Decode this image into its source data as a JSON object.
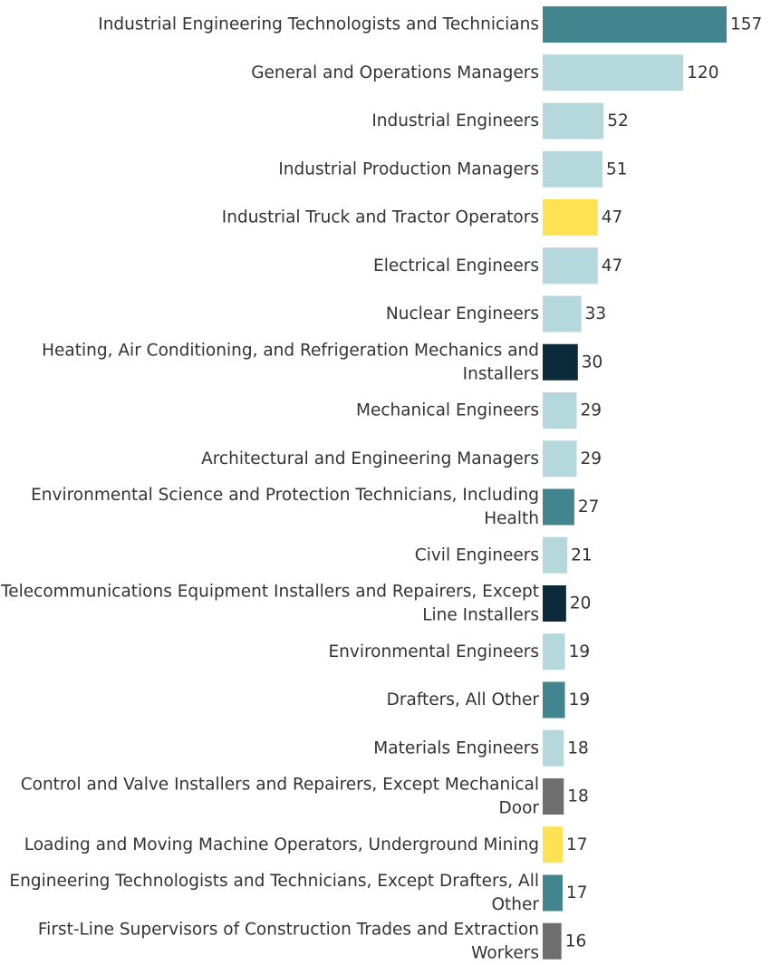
{
  "chart_data": {
    "type": "bar",
    "orientation": "horizontal",
    "title": "",
    "xlabel": "",
    "ylabel": "",
    "xlim": [
      0,
      157
    ],
    "grid": false,
    "legend": "none",
    "categories": [
      [
        "Industrial Engineering Technologists and Technicians"
      ],
      [
        "General and Operations Managers"
      ],
      [
        "Industrial Engineers"
      ],
      [
        "Industrial Production Managers"
      ],
      [
        "Industrial Truck and Tractor Operators"
      ],
      [
        "Electrical Engineers"
      ],
      [
        "Nuclear Engineers"
      ],
      [
        "Heating, Air Conditioning, and Refrigeration Mechanics and",
        "Installers"
      ],
      [
        "Mechanical Engineers"
      ],
      [
        "Architectural and Engineering Managers"
      ],
      [
        "Environmental Science and Protection Technicians, Including",
        "Health"
      ],
      [
        "Civil Engineers"
      ],
      [
        "Telecommunications Equipment Installers and Repairers, Except",
        "Line Installers"
      ],
      [
        "Environmental Engineers"
      ],
      [
        "Drafters, All Other"
      ],
      [
        "Materials Engineers"
      ],
      [
        "Control and Valve Installers and Repairers, Except Mechanical",
        "Door"
      ],
      [
        "Loading and Moving Machine Operators, Underground Mining"
      ],
      [
        "Engineering Technologists and Technicians, Except Drafters, All",
        "Other"
      ],
      [
        "First-Line Supervisors of Construction Trades and Extraction",
        "Workers"
      ]
    ],
    "values": [
      157,
      120,
      52,
      51,
      47,
      47,
      33,
      30,
      29,
      29,
      27,
      21,
      20,
      19,
      19,
      18,
      18,
      17,
      17,
      16
    ],
    "bar_colors": [
      "#43858f",
      "#b5d8dc",
      "#b5d8dc",
      "#b5d8dc",
      "#ffe254",
      "#b5d8dc",
      "#b5d8dc",
      "#0b2b3a",
      "#b5d8dc",
      "#b5d8dc",
      "#43858f",
      "#b5d8dc",
      "#0b2b3a",
      "#b5d8dc",
      "#43858f",
      "#b5d8dc",
      "#6e6e6e",
      "#ffe254",
      "#43858f",
      "#6e6e6e"
    ]
  }
}
